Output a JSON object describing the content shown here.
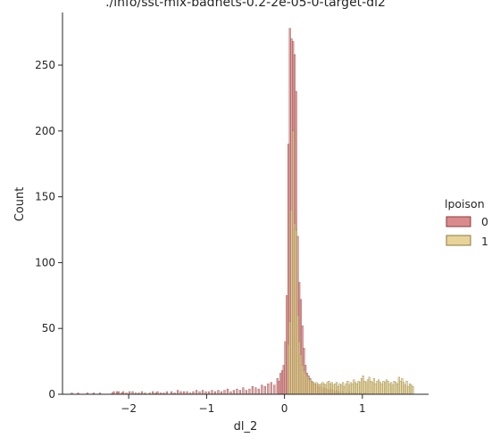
{
  "chart_data": {
    "type": "histogram",
    "title": "./info/sst-mix-badnets-0.2-2e-05-0-target-dl2",
    "xlabel": "dl_2",
    "ylabel": "Count",
    "xlim": [
      -2.85,
      1.85
    ],
    "ylim": [
      0,
      290
    ],
    "x_ticks": [
      -2,
      -1,
      0,
      1
    ],
    "x_tick_labels": [
      "−2",
      "−1",
      "0",
      "1"
    ],
    "y_ticks": [
      0,
      50,
      100,
      150,
      200,
      250
    ],
    "y_tick_labels": [
      "0",
      "50",
      "100",
      "150",
      "200",
      "250"
    ],
    "grid": false,
    "legend": {
      "title": "lpoison",
      "position": "right",
      "entries": [
        "0",
        "1"
      ]
    },
    "bin_width": 0.02,
    "series": [
      {
        "name": "0",
        "color": "#d98b8b",
        "edge": "#8b3a3a",
        "bins": [
          [
            -2.74,
            1
          ],
          [
            -2.66,
            1
          ],
          [
            -2.54,
            1
          ],
          [
            -2.46,
            1
          ],
          [
            -2.38,
            1
          ],
          [
            -2.22,
            1
          ],
          [
            -2.2,
            2
          ],
          [
            -2.16,
            2
          ],
          [
            -2.14,
            2
          ],
          [
            -2.1,
            1
          ],
          [
            -2.08,
            2
          ],
          [
            -2.04,
            1
          ],
          [
            -2.0,
            2
          ],
          [
            -1.96,
            2
          ],
          [
            -1.92,
            1
          ],
          [
            -1.88,
            1
          ],
          [
            -1.84,
            2
          ],
          [
            -1.8,
            1
          ],
          [
            -1.74,
            1
          ],
          [
            -1.7,
            2
          ],
          [
            -1.66,
            1
          ],
          [
            -1.64,
            2
          ],
          [
            -1.6,
            1
          ],
          [
            -1.56,
            1
          ],
          [
            -1.52,
            2
          ],
          [
            -1.46,
            2
          ],
          [
            -1.42,
            1
          ],
          [
            -1.38,
            3
          ],
          [
            -1.34,
            2
          ],
          [
            -1.3,
            2
          ],
          [
            -1.26,
            2
          ],
          [
            -1.22,
            1
          ],
          [
            -1.18,
            2
          ],
          [
            -1.14,
            3
          ],
          [
            -1.1,
            2
          ],
          [
            -1.06,
            3
          ],
          [
            -1.02,
            2
          ],
          [
            -0.98,
            2
          ],
          [
            -0.94,
            3
          ],
          [
            -0.9,
            2
          ],
          [
            -0.86,
            3
          ],
          [
            -0.82,
            2
          ],
          [
            -0.78,
            3
          ],
          [
            -0.74,
            4
          ],
          [
            -0.7,
            2
          ],
          [
            -0.66,
            3
          ],
          [
            -0.62,
            4
          ],
          [
            -0.58,
            3
          ],
          [
            -0.54,
            5
          ],
          [
            -0.5,
            3
          ],
          [
            -0.46,
            4
          ],
          [
            -0.42,
            6
          ],
          [
            -0.38,
            5
          ],
          [
            -0.34,
            4
          ],
          [
            -0.3,
            7
          ],
          [
            -0.26,
            6
          ],
          [
            -0.22,
            8
          ],
          [
            -0.18,
            9
          ],
          [
            -0.14,
            7
          ],
          [
            -0.1,
            12
          ],
          [
            -0.08,
            10
          ],
          [
            -0.06,
            16
          ],
          [
            -0.04,
            18
          ],
          [
            -0.02,
            22
          ],
          [
            0.0,
            40
          ],
          [
            0.02,
            75
          ],
          [
            0.04,
            190
          ],
          [
            0.06,
            278
          ],
          [
            0.08,
            270
          ],
          [
            0.1,
            268
          ],
          [
            0.12,
            258
          ],
          [
            0.14,
            230
          ],
          [
            0.16,
            120
          ],
          [
            0.18,
            85
          ],
          [
            0.2,
            72
          ],
          [
            0.22,
            52
          ],
          [
            0.24,
            35
          ],
          [
            0.26,
            22
          ],
          [
            0.28,
            16
          ],
          [
            0.3,
            14
          ],
          [
            0.32,
            12
          ],
          [
            0.34,
            10
          ],
          [
            0.36,
            9
          ],
          [
            0.38,
            8
          ],
          [
            0.4,
            7
          ],
          [
            0.42,
            6
          ],
          [
            0.44,
            5
          ],
          [
            0.46,
            6
          ],
          [
            0.48,
            4
          ],
          [
            0.5,
            5
          ],
          [
            0.52,
            4
          ],
          [
            0.54,
            4
          ],
          [
            0.56,
            3
          ],
          [
            0.58,
            4
          ],
          [
            0.6,
            3
          ],
          [
            0.62,
            3
          ],
          [
            0.64,
            2
          ],
          [
            0.66,
            3
          ],
          [
            0.68,
            2
          ],
          [
            0.7,
            2
          ],
          [
            0.74,
            2
          ],
          [
            0.78,
            1
          ],
          [
            0.82,
            2
          ],
          [
            0.86,
            1
          ],
          [
            0.9,
            1
          ],
          [
            0.96,
            1
          ],
          [
            1.02,
            1
          ]
        ]
      },
      {
        "name": "1",
        "color": "#e8d49a",
        "edge": "#8b7a3a",
        "bins": [
          [
            0.04,
            38
          ],
          [
            0.06,
            55
          ],
          [
            0.08,
            140
          ],
          [
            0.1,
            200
          ],
          [
            0.12,
            130
          ],
          [
            0.14,
            125
          ],
          [
            0.16,
            60
          ],
          [
            0.18,
            40
          ],
          [
            0.2,
            30
          ],
          [
            0.22,
            22
          ],
          [
            0.24,
            18
          ],
          [
            0.26,
            16
          ],
          [
            0.28,
            14
          ],
          [
            0.3,
            12
          ],
          [
            0.32,
            11
          ],
          [
            0.34,
            10
          ],
          [
            0.36,
            9
          ],
          [
            0.38,
            8
          ],
          [
            0.4,
            9
          ],
          [
            0.42,
            8
          ],
          [
            0.44,
            7
          ],
          [
            0.46,
            8
          ],
          [
            0.48,
            9
          ],
          [
            0.5,
            8
          ],
          [
            0.52,
            7
          ],
          [
            0.54,
            9
          ],
          [
            0.56,
            10
          ],
          [
            0.58,
            8
          ],
          [
            0.6,
            9
          ],
          [
            0.62,
            7
          ],
          [
            0.64,
            8
          ],
          [
            0.66,
            9
          ],
          [
            0.68,
            6
          ],
          [
            0.7,
            8
          ],
          [
            0.72,
            7
          ],
          [
            0.74,
            9
          ],
          [
            0.76,
            6
          ],
          [
            0.78,
            8
          ],
          [
            0.8,
            10
          ],
          [
            0.82,
            7
          ],
          [
            0.84,
            9
          ],
          [
            0.86,
            8
          ],
          [
            0.88,
            11
          ],
          [
            0.9,
            9
          ],
          [
            0.92,
            8
          ],
          [
            0.94,
            10
          ],
          [
            0.96,
            9
          ],
          [
            0.98,
            12
          ],
          [
            1.0,
            14
          ],
          [
            1.02,
            10
          ],
          [
            1.04,
            9
          ],
          [
            1.06,
            11
          ],
          [
            1.08,
            13
          ],
          [
            1.1,
            10
          ],
          [
            1.12,
            9
          ],
          [
            1.14,
            12
          ],
          [
            1.16,
            8
          ],
          [
            1.18,
            10
          ],
          [
            1.2,
            11
          ],
          [
            1.22,
            9
          ],
          [
            1.24,
            8
          ],
          [
            1.26,
            10
          ],
          [
            1.28,
            9
          ],
          [
            1.3,
            11
          ],
          [
            1.32,
            10
          ],
          [
            1.34,
            8
          ],
          [
            1.36,
            9
          ],
          [
            1.38,
            7
          ],
          [
            1.4,
            10
          ],
          [
            1.42,
            9
          ],
          [
            1.44,
            8
          ],
          [
            1.46,
            13
          ],
          [
            1.48,
            10
          ],
          [
            1.5,
            12
          ],
          [
            1.52,
            9
          ],
          [
            1.54,
            7
          ],
          [
            1.56,
            10
          ],
          [
            1.58,
            6
          ],
          [
            1.6,
            8
          ],
          [
            1.62,
            7
          ],
          [
            1.64,
            6
          ]
        ]
      }
    ]
  }
}
